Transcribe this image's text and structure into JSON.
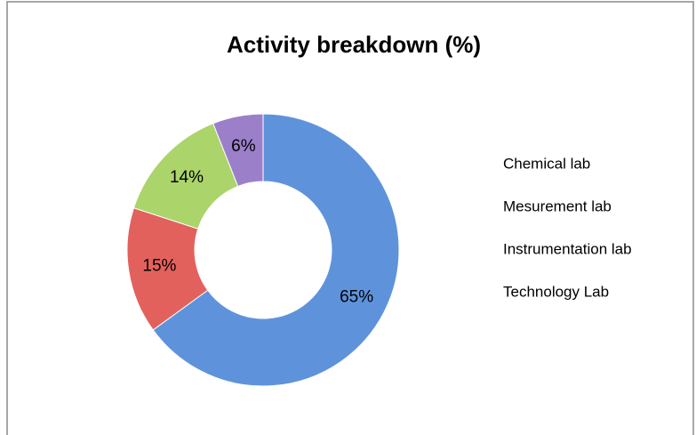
{
  "chart_data": {
    "type": "donut",
    "title": "Activity breakdown (%)",
    "categories": [
      "Chemical lab",
      "Mesurement lab",
      "Instrumentation lab",
      "Technology Lab"
    ],
    "values": [
      65,
      15,
      14,
      6
    ],
    "value_labels": [
      "65%",
      "15%",
      "14%",
      "6%"
    ],
    "colors": [
      "#5e93dc",
      "#e3615c",
      "#abd46b",
      "#9b80c9"
    ],
    "legend": "right"
  }
}
